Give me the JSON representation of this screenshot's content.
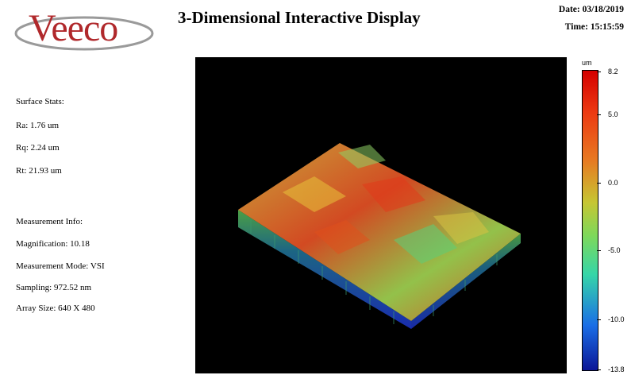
{
  "header": {
    "brand": "Veeco",
    "title": "3-Dimensional Interactive Display",
    "date": "Date: 03/18/2019",
    "time": "Time: 15:15:59"
  },
  "surface_stats": {
    "heading": "Surface Stats:",
    "ra": "Ra: 1.76 um",
    "rq": "Rq: 2.24 um",
    "rt": "Rt: 21.93 um"
  },
  "measurement_info": {
    "heading": "Measurement Info:",
    "magnification": "Magnification: 10.18",
    "mode": "Measurement Mode: VSI",
    "sampling": "Sampling: 972.52 nm",
    "array_size": "Array Size: 640 X 480"
  },
  "colorbar": {
    "unit": "um",
    "ticks": [
      "8.2",
      "5.0",
      "0.0",
      "-5.0",
      "-10.0",
      "-13.8"
    ],
    "colors": {
      "top": "#d40000",
      "middle": "#7ed85a",
      "bottom": "#0b1696"
    }
  },
  "plot": {
    "background": "#000000"
  }
}
